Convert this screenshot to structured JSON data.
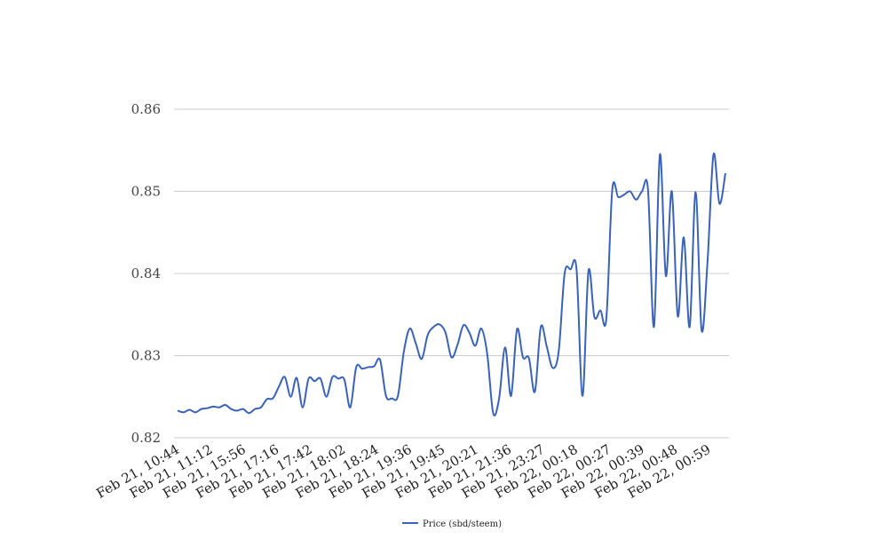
{
  "chart_data": {
    "type": "line",
    "title": "",
    "xlabel": "",
    "ylabel": "",
    "ylim": [
      0.82,
      0.86
    ],
    "y_ticks": [
      "0.82",
      "0.83",
      "0.84",
      "0.85",
      "0.86"
    ],
    "grid": "horizontal",
    "legend_position": "bottom",
    "x_tick_labels": [
      "Feb 21, 10:44",
      "Feb 21, 11:12",
      "Feb 21, 15:56",
      "Feb 21, 17:16",
      "Feb 21, 17:42",
      "Feb 21, 18:02",
      "Feb 21, 18:24",
      "Feb 21, 19:36",
      "Feb 21, 19:45",
      "Feb 21, 20:21",
      "Feb 21, 21:36",
      "Feb 21, 23:27",
      "Feb 22, 00:18",
      "Feb 22, 00:27",
      "Feb 22, 00:39",
      "Feb 22, 00:48",
      "Feb 22, 00:59"
    ],
    "series": [
      {
        "name": "Price (sbd/steem)",
        "color": "#3a62b8",
        "values": [
          0.8233,
          0.8231,
          0.8234,
          0.8231,
          0.8235,
          0.8236,
          0.8238,
          0.8237,
          0.824,
          0.8235,
          0.8233,
          0.8235,
          0.823,
          0.8235,
          0.8237,
          0.8247,
          0.8248,
          0.8262,
          0.8274,
          0.825,
          0.8273,
          0.8237,
          0.8272,
          0.8269,
          0.8272,
          0.825,
          0.8274,
          0.8272,
          0.8271,
          0.8237,
          0.8286,
          0.8284,
          0.8286,
          0.8287,
          0.8295,
          0.8251,
          0.8248,
          0.8251,
          0.8305,
          0.8333,
          0.8315,
          0.8296,
          0.8325,
          0.8335,
          0.8338,
          0.8328,
          0.8298,
          0.8313,
          0.8337,
          0.8328,
          0.8312,
          0.8333,
          0.8302,
          0.823,
          0.8248,
          0.831,
          0.8251,
          0.8332,
          0.8298,
          0.8297,
          0.8256,
          0.8335,
          0.8311,
          0.8285,
          0.8305,
          0.84,
          0.8405,
          0.8405,
          0.8251,
          0.8403,
          0.8347,
          0.8355,
          0.8345,
          0.8502,
          0.8493,
          0.8496,
          0.85,
          0.849,
          0.85,
          0.8502,
          0.8335,
          0.8545,
          0.8397,
          0.85,
          0.8348,
          0.8444,
          0.8335,
          0.8499,
          0.8331,
          0.8415,
          0.8545,
          0.8485,
          0.8522
        ]
      }
    ]
  }
}
